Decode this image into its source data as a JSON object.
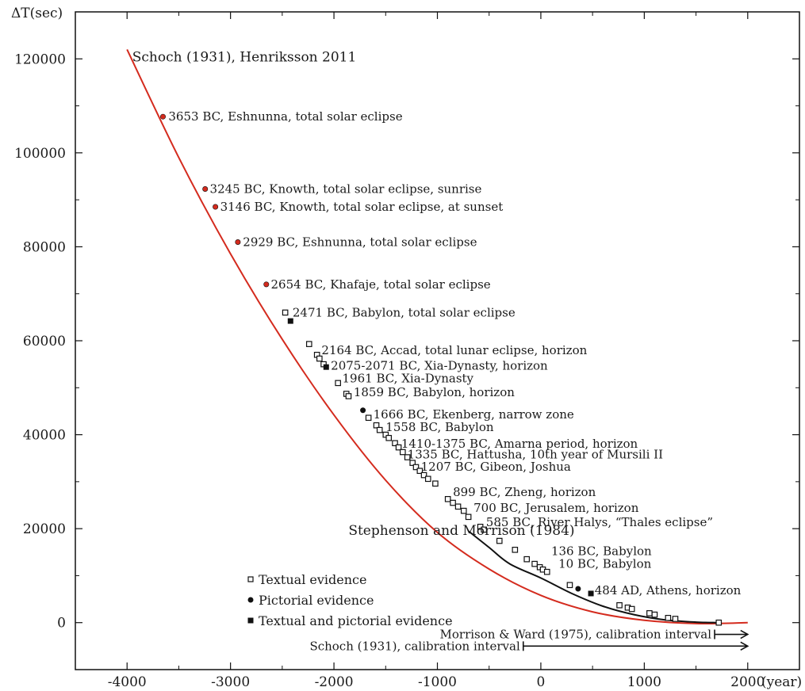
{
  "chart_data": {
    "type": "line",
    "title": "",
    "xlabel": "(year)",
    "ylabel": "ΔT(sec)",
    "xlim": [
      -4500,
      2500
    ],
    "ylim": [
      -10000,
      130000
    ],
    "x_ticks": [
      -4000,
      -3000,
      -2000,
      -1000,
      0,
      1000,
      2000
    ],
    "y_ticks": [
      0,
      20000,
      40000,
      60000,
      80000,
      100000,
      120000
    ],
    "grid": false,
    "colors": {
      "red_curve": "#d42b1e",
      "black_curve": "#111111"
    },
    "series": [
      {
        "name": "Schoch (1931), Henriksson 2011",
        "color": "#d42b1e",
        "x": [
          -4000,
          -3500,
          -3000,
          -2500,
          -2000,
          -1500,
          -1000,
          -500,
          0,
          500,
          1000,
          1500,
          2000
        ],
        "y": [
          122000,
          99000,
          78500,
          60300,
          44200,
          30300,
          19200,
          11400,
          5800,
          2300,
          500,
          -200,
          0
        ]
      },
      {
        "name": "Stephenson and Morrison (1984)",
        "color": "#111111",
        "x": [
          -700,
          -500,
          -300,
          0,
          300,
          600,
          900,
          1200,
          1500,
          1700
        ],
        "y": [
          19500,
          16000,
          12500,
          9500,
          6200,
          3500,
          1700,
          600,
          100,
          0
        ]
      }
    ],
    "points": [
      {
        "x": -3653,
        "y": 107700,
        "kind": "pictorial"
      },
      {
        "x": -3245,
        "y": 92300,
        "kind": "pictorial"
      },
      {
        "x": -3146,
        "y": 88500,
        "kind": "pictorial"
      },
      {
        "x": -2929,
        "y": 81000,
        "kind": "pictorial"
      },
      {
        "x": -2654,
        "y": 72000,
        "kind": "pictorial"
      },
      {
        "x": -2471,
        "y": 66000,
        "kind": "textual"
      },
      {
        "x": -2420,
        "y": 64200,
        "kind": "both"
      },
      {
        "x": -2240,
        "y": 59300,
        "kind": "textual"
      },
      {
        "x": -2164,
        "y": 57000,
        "kind": "textual"
      },
      {
        "x": -2140,
        "y": 56200,
        "kind": "textual"
      },
      {
        "x": -2100,
        "y": 55000,
        "kind": "textual"
      },
      {
        "x": -2075,
        "y": 54400,
        "kind": "both"
      },
      {
        "x": -1961,
        "y": 51000,
        "kind": "textual"
      },
      {
        "x": -1880,
        "y": 48700,
        "kind": "textual"
      },
      {
        "x": -1859,
        "y": 48200,
        "kind": "textual"
      },
      {
        "x": -1720,
        "y": 45200,
        "kind": "pictorial"
      },
      {
        "x": -1666,
        "y": 43600,
        "kind": "textual"
      },
      {
        "x": -1590,
        "y": 42000,
        "kind": "textual"
      },
      {
        "x": -1558,
        "y": 41000,
        "kind": "textual"
      },
      {
        "x": -1500,
        "y": 40000,
        "kind": "textual"
      },
      {
        "x": -1470,
        "y": 39300,
        "kind": "textual"
      },
      {
        "x": -1410,
        "y": 38200,
        "kind": "textual"
      },
      {
        "x": -1375,
        "y": 37300,
        "kind": "textual"
      },
      {
        "x": -1335,
        "y": 36300,
        "kind": "textual"
      },
      {
        "x": -1290,
        "y": 35200,
        "kind": "textual"
      },
      {
        "x": -1240,
        "y": 34000,
        "kind": "textual"
      },
      {
        "x": -1207,
        "y": 33100,
        "kind": "textual"
      },
      {
        "x": -1170,
        "y": 32300,
        "kind": "textual"
      },
      {
        "x": -1130,
        "y": 31400,
        "kind": "textual"
      },
      {
        "x": -1090,
        "y": 30600,
        "kind": "textual"
      },
      {
        "x": -1020,
        "y": 29600,
        "kind": "textual"
      },
      {
        "x": -899,
        "y": 26300,
        "kind": "textual"
      },
      {
        "x": -850,
        "y": 25500,
        "kind": "textual"
      },
      {
        "x": -800,
        "y": 24700,
        "kind": "textual"
      },
      {
        "x": -745,
        "y": 23800,
        "kind": "textual"
      },
      {
        "x": -700,
        "y": 22500,
        "kind": "textual"
      },
      {
        "x": -585,
        "y": 20400,
        "kind": "textual"
      },
      {
        "x": -550,
        "y": 19800,
        "kind": "textual"
      },
      {
        "x": -400,
        "y": 17400,
        "kind": "textual"
      },
      {
        "x": -250,
        "y": 15500,
        "kind": "textual"
      },
      {
        "x": -136,
        "y": 13500,
        "kind": "textual"
      },
      {
        "x": -60,
        "y": 12500,
        "kind": "textual"
      },
      {
        "x": -10,
        "y": 11800,
        "kind": "textual"
      },
      {
        "x": 20,
        "y": 11300,
        "kind": "textual"
      },
      {
        "x": 60,
        "y": 10800,
        "kind": "textual"
      },
      {
        "x": 280,
        "y": 8000,
        "kind": "textual"
      },
      {
        "x": 360,
        "y": 7200,
        "kind": "pictorial"
      },
      {
        "x": 484,
        "y": 6200,
        "kind": "both"
      },
      {
        "x": 760,
        "y": 3700,
        "kind": "textual"
      },
      {
        "x": 840,
        "y": 3200,
        "kind": "textual"
      },
      {
        "x": 880,
        "y": 2900,
        "kind": "textual"
      },
      {
        "x": 1050,
        "y": 2000,
        "kind": "textual"
      },
      {
        "x": 1100,
        "y": 1700,
        "kind": "textual"
      },
      {
        "x": 1230,
        "y": 1000,
        "kind": "textual"
      },
      {
        "x": 1300,
        "y": 800,
        "kind": "textual"
      },
      {
        "x": 1720,
        "y": 0,
        "kind": "textual"
      }
    ],
    "annotations": [
      {
        "text": "3653 BC, Eshnunna, total solar eclipse",
        "x": -3600,
        "y": 107700
      },
      {
        "text": "3245 BC, Knowth, total solar eclipse, sunrise",
        "x": -3200,
        "y": 92300
      },
      {
        "text": "3146 BC, Knowth, total solar eclipse, at sunset",
        "x": -3100,
        "y": 88500
      },
      {
        "text": "2929 BC, Eshnunna, total solar eclipse",
        "x": -2880,
        "y": 81000
      },
      {
        "text": "2654 BC, Khafaje, total solar eclipse",
        "x": -2610,
        "y": 72000
      },
      {
        "text": "2471 BC, Babylon, total solar eclipse",
        "x": -2400,
        "y": 66000
      },
      {
        "text": "2164 BC, Accad, total lunar eclipse, horizon",
        "x": -2120,
        "y": 58000
      },
      {
        "text": "2075-2071 BC, Xia-Dynasty, horizon",
        "x": -2030,
        "y": 54700
      },
      {
        "text": "1961 BC, Xia-Dynasty",
        "x": -1920,
        "y": 52000
      },
      {
        "text": "1859 BC, Babylon, horizon",
        "x": -1810,
        "y": 49000
      },
      {
        "text": "1666 BC, Ekenberg, narrow zone",
        "x": -1620,
        "y": 44300
      },
      {
        "text": "1558 BC, Babylon",
        "x": -1500,
        "y": 41600
      },
      {
        "text": "1410-1375 BC, Amarna period, horizon",
        "x": -1350,
        "y": 38100
      },
      {
        "text": "1335 BC, Hattusha, 10th year of Mursili II",
        "x": -1290,
        "y": 35800
      },
      {
        "text": "1207 BC, Gibeon, Joshua",
        "x": -1160,
        "y": 33200
      },
      {
        "text": "899 BC, Zheng, horizon",
        "x": -850,
        "y": 27800
      },
      {
        "text": "700 BC, Jerusalem, horizon",
        "x": -650,
        "y": 24400
      },
      {
        "text": "585 BC, River Halys, “Thales eclipse”",
        "x": -530,
        "y": 21400
      },
      {
        "text": "136 BC, Babylon",
        "x": 100,
        "y": 15200
      },
      {
        "text": "10 BC, Babylon",
        "x": 170,
        "y": 12500
      },
      {
        "text": "484 AD, Athens, horizon",
        "x": 520,
        "y": 6900
      }
    ],
    "series_labels": [
      {
        "text": "Schoch (1931), Henriksson 2011",
        "x": -3950,
        "y": 120500
      },
      {
        "text": "Stephenson and Morrison (1984)",
        "x": -1860,
        "y": 19700
      }
    ],
    "legend": {
      "position": "bottom-left",
      "items": [
        {
          "label": "Textual evidence",
          "marker": "open-square"
        },
        {
          "label": "Pictorial evidence",
          "marker": "dot"
        },
        {
          "label": "Textual and pictorial evidence",
          "marker": "filled-square"
        }
      ]
    },
    "calibration_intervals": [
      {
        "text": "Morrison & Ward (1975), calibration interval",
        "from": 1680,
        "to": 2000,
        "y": -2500
      },
      {
        "text": "Schoch (1931), calibration interval",
        "from": -170,
        "to": 2000,
        "y": -5000
      }
    ]
  }
}
